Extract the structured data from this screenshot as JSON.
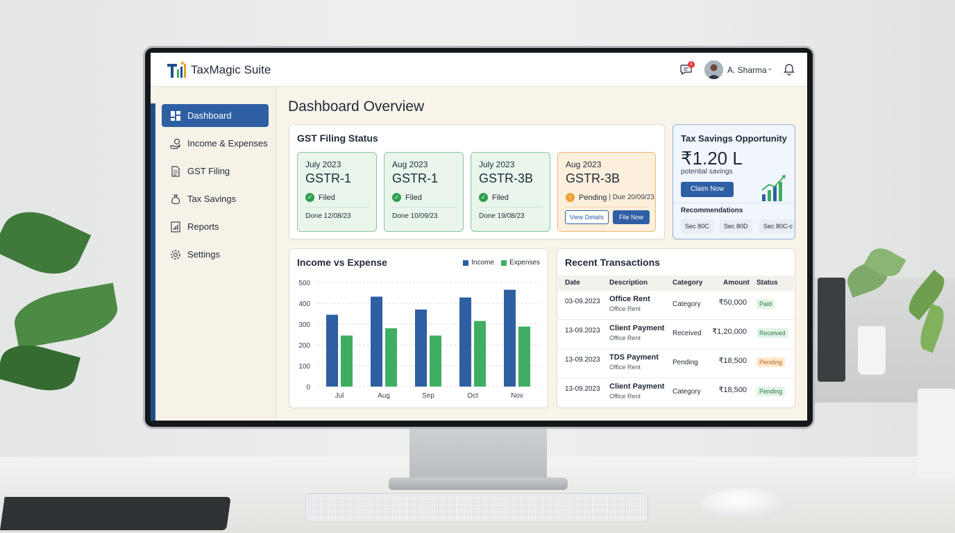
{
  "app": {
    "title": "TaxMagic Suite"
  },
  "header": {
    "chat_badge": "1",
    "user_name": "A. Sharma"
  },
  "sidebar": {
    "items": [
      {
        "label": "Dashboard",
        "icon": "dashboard-icon",
        "active": true
      },
      {
        "label": "Income & Expenses",
        "icon": "money-hand-icon",
        "active": false
      },
      {
        "label": "GST Filing",
        "icon": "document-icon",
        "active": false
      },
      {
        "label": "Tax Savings",
        "icon": "money-bag-icon",
        "active": false
      },
      {
        "label": "Reports",
        "icon": "report-icon",
        "active": false
      },
      {
        "label": "Settings",
        "icon": "gear-icon",
        "active": false
      }
    ]
  },
  "main": {
    "title": "Dashboard Overview"
  },
  "gst": {
    "title": "GST Filing Status",
    "tiles": [
      {
        "period": "July 2023",
        "form": "GSTR-1",
        "status": "Filed",
        "done": "Done 12/08/23"
      },
      {
        "period": "Aug 2023",
        "form": "GSTR-1",
        "status": "Filed",
        "done": "Done 10/09/23"
      },
      {
        "period": "July 2023",
        "form": "GSTR-3B",
        "status": "Filed",
        "done": "Done 19/08/23"
      },
      {
        "period": "Aug 2023",
        "form": "GSTR-3B",
        "status": "Pending",
        "due": "| Due 20/09/23",
        "view_label": "View Details",
        "file_label": "File Now"
      }
    ]
  },
  "savings": {
    "title": "Tax Savings Opportunity",
    "amount": "₹1.20 L",
    "subtitle": "potential savings",
    "claim_label": "Claim Now",
    "rec_label": "Recommendations",
    "chips": [
      "Sec 80C",
      "Sec 80D",
      "Sec 80C-c"
    ]
  },
  "income_chart": {
    "title": "Income vs Expense",
    "legend_income": "Income",
    "legend_expense": "Expenses"
  },
  "chart_data": {
    "type": "bar",
    "categories": [
      "Jul",
      "Aug",
      "Sep",
      "Oct",
      "Nov"
    ],
    "series": [
      {
        "name": "Income",
        "values": [
          345,
          432,
          370,
          428,
          465
        ]
      },
      {
        "name": "Expenses",
        "values": [
          245,
          280,
          245,
          315,
          288
        ]
      }
    ],
    "title": "Income vs Expense",
    "ylim": [
      0,
      500
    ],
    "yticks": [
      0,
      100,
      200,
      300,
      400,
      500
    ],
    "grid": true,
    "legend": "top-right",
    "colors": {
      "Income": "#2f5fa3",
      "Expenses": "#3fae62"
    }
  },
  "transactions": {
    "title": "Recent Transactions",
    "columns": [
      "Date",
      "Description",
      "Category",
      "Amount",
      "Status"
    ],
    "rows": [
      {
        "date": "03-09.2023",
        "desc": "Office Rent",
        "sub": "Office Rent",
        "category": "Category",
        "amount": "₹50,000",
        "status": "Paid",
        "status_color": "green"
      },
      {
        "date": "13-09.2023",
        "desc": "Client Payment",
        "sub": "Office Rent",
        "category": "Received",
        "amount": "₹1,20,000",
        "status": "Received",
        "status_color": "green"
      },
      {
        "date": "13-09.2023",
        "desc": "TDS Payment",
        "sub": "Office Rent",
        "category": "Pending",
        "amount": "₹18,500",
        "status": "Pending",
        "status_color": "amber"
      },
      {
        "date": "13-09.2023",
        "desc": "Client Payment",
        "sub": "Office Rent",
        "category": "Category",
        "amount": "₹18,500",
        "status": "Pending",
        "status_color": "green"
      }
    ]
  }
}
